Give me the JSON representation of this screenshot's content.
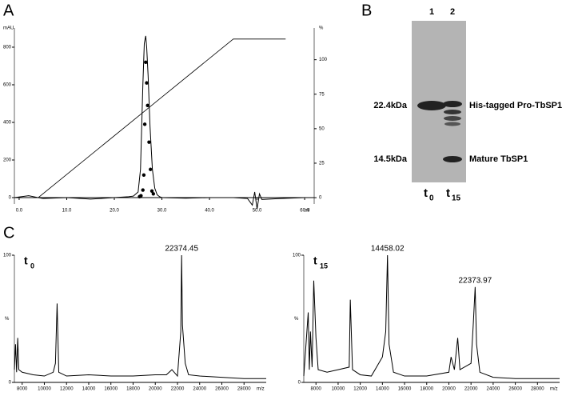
{
  "panels": {
    "a": "A",
    "b": "B",
    "c": "C"
  },
  "chart_data": [
    {
      "type": "line",
      "ylabel": "mAU",
      "y2label": "%",
      "xlabel": "ml",
      "xlim": [
        -1,
        62
      ],
      "xticks": [
        {
          "value": 0,
          "label": "0.0"
        },
        {
          "value": 10,
          "label": "10.0"
        },
        {
          "value": 20,
          "label": "20.0"
        },
        {
          "value": 30,
          "label": "30.0"
        },
        {
          "value": 40,
          "label": "40.0"
        },
        {
          "value": 50,
          "label": "50.0"
        },
        {
          "value": 60,
          "label": "60.0"
        }
      ],
      "ylim": [
        -34,
        902
      ],
      "yticks": [
        0,
        200,
        400,
        600,
        800
      ],
      "y2lim": [
        -4.6,
        123
      ],
      "y2ticks": [
        0,
        25,
        50,
        75,
        100
      ],
      "series": [
        {
          "color": "#000000",
          "marker": "line",
          "x": [
            -1,
            2,
            5,
            10,
            15,
            20,
            23,
            24,
            25,
            25.5,
            26,
            26.3,
            26.6,
            26.8,
            27.1,
            27.5,
            28,
            28.5,
            29,
            29.5,
            30,
            35,
            40,
            45,
            48,
            49,
            49.5,
            50,
            50.5,
            51,
            55,
            60,
            62
          ],
          "values": [
            0,
            10,
            -5,
            0,
            -8,
            0,
            5,
            8,
            30,
            150,
            600,
            820,
            860,
            800,
            650,
            380,
            150,
            50,
            15,
            5,
            0,
            -3,
            0,
            0,
            -5,
            -40,
            30,
            -60,
            20,
            -10,
            -5,
            0,
            0
          ]
        },
        {
          "color": "#000000",
          "marker": "line",
          "axis": "y2",
          "x": [
            -1,
            4,
            45,
            56
          ],
          "values": [
            0,
            0,
            115,
            115
          ]
        },
        {
          "color": "#000000",
          "marker": "dot",
          "x": [
            25.3,
            25.6,
            26.0,
            26.2,
            26.4,
            26.6,
            26.8,
            27.0,
            27.3,
            27.6,
            27.9,
            28.2
          ],
          "values": [
            5,
            10,
            40,
            120,
            390,
            720,
            610,
            490,
            295,
            150,
            35,
            20
          ]
        }
      ]
    },
    {
      "type": "line",
      "subtitle": {
        "base": "t",
        "sub": "0"
      },
      "ylabel": "%",
      "xlabel": "m/z",
      "xlim": [
        7300,
        30000
      ],
      "xticks": [
        8000,
        10000,
        12000,
        14000,
        16000,
        18000,
        20000,
        22000,
        24000,
        26000,
        28000
      ],
      "ylim": [
        0,
        100
      ],
      "yticks": [
        0,
        100
      ],
      "annotations": [
        {
          "label": "22374.45",
          "x": 22374.45,
          "y": 100
        }
      ],
      "series": [
        {
          "color": "#000000",
          "marker": "line",
          "x": [
            7300,
            7400,
            7500,
            7600,
            7700,
            8000,
            9000,
            10000,
            10800,
            11000,
            11150,
            11300,
            12000,
            14000,
            16000,
            18000,
            20000,
            21000,
            21500,
            22000,
            22300,
            22374.45,
            22450,
            22700,
            23000,
            24000,
            26000,
            28000,
            30000
          ],
          "values": [
            10,
            30,
            8,
            35,
            10,
            8,
            6,
            5,
            8,
            15,
            62,
            8,
            5,
            6,
            5,
            5,
            6,
            6,
            10,
            5,
            40,
            100,
            45,
            15,
            6,
            5,
            4,
            3,
            3
          ]
        }
      ]
    },
    {
      "type": "line",
      "subtitle": {
        "base": "t",
        "sub": "15"
      },
      "ylabel": "%",
      "xlabel": "m/z",
      "xlim": [
        6900,
        30000
      ],
      "xticks": [
        8000,
        10000,
        12000,
        14000,
        16000,
        18000,
        20000,
        22000,
        24000,
        26000,
        28000
      ],
      "ylim": [
        0,
        100
      ],
      "yticks": [
        0,
        100
      ],
      "annotations": [
        {
          "label": "14458.02",
          "x": 14458.02,
          "y": 100
        },
        {
          "label": "22373.97",
          "x": 22373.97,
          "y": 75
        }
      ],
      "series": [
        {
          "color": "#000000",
          "marker": "line",
          "x": [
            6900,
            7300,
            7400,
            7500,
            7650,
            7800,
            8000,
            8200,
            9000,
            10000,
            11000,
            11100,
            11300,
            12000,
            13000,
            14000,
            14300,
            14458.02,
            14600,
            15000,
            16000,
            18000,
            20000,
            20200,
            20500,
            20800,
            21000,
            22000,
            22200,
            22373.97,
            22500,
            22800,
            24000,
            26000,
            28000,
            30000
          ],
          "values": [
            5,
            55,
            10,
            40,
            12,
            80,
            35,
            10,
            8,
            10,
            12,
            65,
            10,
            6,
            5,
            20,
            40,
            100,
            30,
            8,
            5,
            5,
            8,
            20,
            10,
            35,
            10,
            15,
            45,
            75,
            30,
            8,
            4,
            3,
            3,
            3
          ]
        }
      ]
    }
  ],
  "gel": {
    "lanes": [
      {
        "number": "1",
        "base": "t",
        "sub": "0"
      },
      {
        "number": "2",
        "base": "t",
        "sub": "15"
      }
    ],
    "markers": [
      "22.4kDa",
      "14.5kDa"
    ],
    "bands": [
      "His-tagged Pro-TbSP1",
      "Mature TbSP1"
    ]
  }
}
